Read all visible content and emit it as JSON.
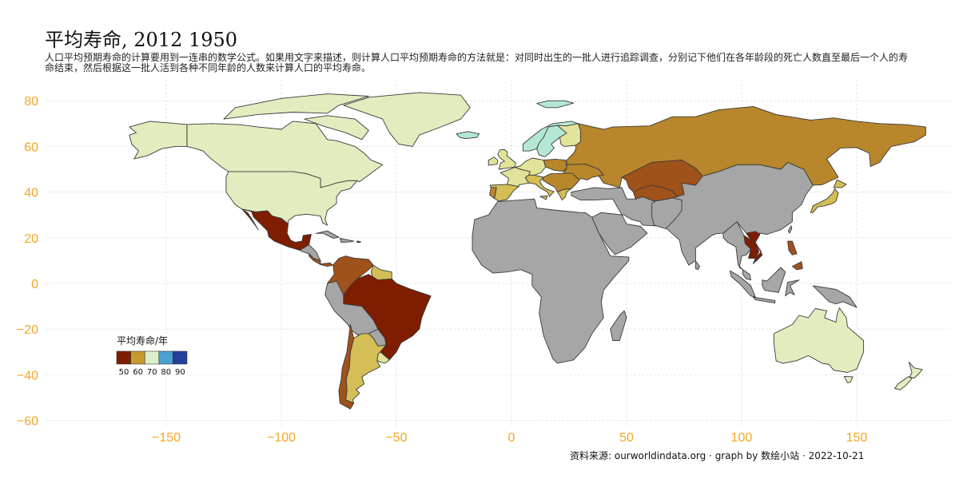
{
  "title": "平均寿命, 2012 1950",
  "subtitle": "人口平均预期寿命的计算要用到一连串的数学公式。如果用文字来描述，则计算人口平均预期寿命的方法就是：对同时出生的一批人进行追踪调查，分别记下他们在各年龄段的死亡人数直至最后一个人的寿命结束，然后根据这一批人活到各种不同年龄的人数来计算人口的平均寿命。",
  "source": "资料来源: ourworldindata.org · graph by 数绘小站 · 2022-10-21",
  "axes": {
    "x_ticks": [
      -150,
      -100,
      -50,
      0,
      50,
      100,
      150
    ],
    "y_ticks": [
      80,
      60,
      40,
      20,
      0,
      -20,
      -40,
      -60
    ],
    "x_tick_labels": [
      "−150",
      "−100",
      "−50",
      "0",
      "50",
      "100",
      "150"
    ],
    "y_tick_labels": [
      "80",
      "60",
      "40",
      "20",
      "0",
      "−20",
      "−40",
      "−60"
    ],
    "tick_color": "#F5A623",
    "grid": true
  },
  "legend": {
    "title": "平均寿命/年",
    "labels": [
      "50",
      "60",
      "70",
      "80",
      "90"
    ],
    "colors": [
      "#7F1D00",
      "#C79A2E",
      "#DDEFC9",
      "#4AA0CF",
      "#23409A"
    ]
  },
  "colors": {
    "no_data": "#A6A6A6",
    "le_50": "#7F1D00",
    "le_55": "#A0521B",
    "le_60": "#B8862B",
    "le_65": "#D4BE55",
    "le_68": "#E2E39A",
    "le_70": "#E1EDBF",
    "le_72": "#B5E8D4"
  },
  "chart_data": {
    "type": "choropleth",
    "variable": "平均寿命/年",
    "scale": {
      "min": 50,
      "max": 90,
      "breaks": [
        50,
        60,
        70,
        80,
        90
      ]
    },
    "regions": [
      {
        "name": "Canada",
        "value": 69
      },
      {
        "name": "USA",
        "value": 69
      },
      {
        "name": "Greenland",
        "value": 69
      },
      {
        "name": "Alaska",
        "value": 69
      },
      {
        "name": "Australia",
        "value": 69
      },
      {
        "name": "New Zealand",
        "value": 69
      },
      {
        "name": "Norway",
        "value": 72
      },
      {
        "name": "Sweden",
        "value": 72
      },
      {
        "name": "Iceland",
        "value": 72
      },
      {
        "name": "Svalbard",
        "value": 72
      },
      {
        "name": "Finland",
        "value": 66
      },
      {
        "name": "UK",
        "value": 68
      },
      {
        "name": "Ireland",
        "value": 66
      },
      {
        "name": "France",
        "value": 66
      },
      {
        "name": "Spain",
        "value": 63
      },
      {
        "name": "Portugal",
        "value": 58
      },
      {
        "name": "Germany",
        "value": 67
      },
      {
        "name": "Italy",
        "value": 65
      },
      {
        "name": "Poland",
        "value": 61
      },
      {
        "name": "Balkans",
        "value": 60
      },
      {
        "name": "Greece",
        "value": 64
      },
      {
        "name": "Ukraine",
        "value": 60
      },
      {
        "name": "Russia",
        "value": 58
      },
      {
        "name": "Kazakhstan",
        "value": 55
      },
      {
        "name": "Turkmenistan/Uzbekistan",
        "value": 52
      },
      {
        "name": "Japan",
        "value": 62
      },
      {
        "name": "Vietnam",
        "value": 50
      },
      {
        "name": "Philippines",
        "value": 55
      },
      {
        "name": "Mexico",
        "value": 50
      },
      {
        "name": "Central America",
        "value": 52
      },
      {
        "name": "Colombia/Venezuela",
        "value": 54
      },
      {
        "name": "Guyana/Suriname",
        "value": 63
      },
      {
        "name": "Brazil",
        "value": 50
      },
      {
        "name": "Argentina",
        "value": 62
      },
      {
        "name": "Chile",
        "value": 55
      },
      {
        "name": "Uruguay",
        "value": 68
      }
    ]
  }
}
